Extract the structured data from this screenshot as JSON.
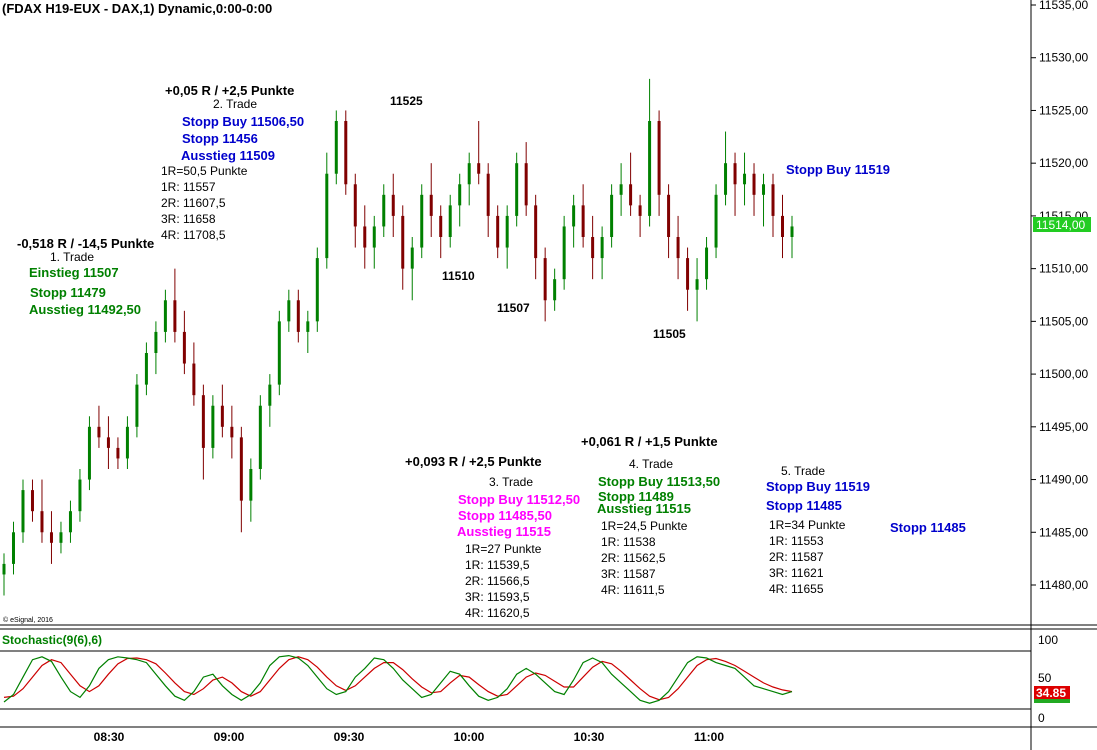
{
  "header": {
    "title": "(FDAX H19-EUX - DAX,1) Dynamic,0:00-0:00"
  },
  "copyright": "© eSignal, 2016",
  "price_axis": {
    "labels": [
      "11535,00",
      "11530,00",
      "11525,00",
      "11520,00",
      "11515,00",
      "11510,00",
      "11505,00",
      "11500,00",
      "11495,00",
      "11490,00",
      "11485,00",
      "11480,00"
    ],
    "current_price": "11514,00",
    "current_color": "#22cc22"
  },
  "time_axis": {
    "labels": [
      "08:30",
      "09:00",
      "09:30",
      "10:00",
      "10:30",
      "11:00"
    ]
  },
  "stochastic": {
    "label": "Stochastic(9(6),6)",
    "axis_labels": [
      "100",
      "50",
      "0"
    ],
    "current_value": "34.85",
    "k_color": "#008000",
    "d_color": "#cc0000"
  },
  "colors": {
    "up": "#008000",
    "down": "#800000",
    "blue": "#0000cc",
    "green": "#008000",
    "magenta": "#ff00ff"
  },
  "levels": {
    "high": "11525",
    "low1": "11510",
    "low2": "11507",
    "low3": "11505"
  },
  "trades": [
    {
      "result": "-0,518 R / -14,5 Punkte",
      "name": "1. Trade",
      "orders": [
        "Einstieg 11507",
        "Stopp 11479",
        "Ausstieg 11492,50"
      ],
      "details": []
    },
    {
      "result": "+0,05 R / +2,5 Punkte",
      "name": "2. Trade",
      "orders": [
        "Stopp Buy 11506,50",
        "Stopp 11456",
        "Ausstieg 11509"
      ],
      "details": [
        "1R=50,5 Punkte",
        "1R: 11557",
        "2R: 11607,5",
        "3R: 11658",
        "4R: 11708,5"
      ]
    },
    {
      "result": "+0,093 R / +2,5 Punkte",
      "name": "3. Trade",
      "orders": [
        "Stopp Buy 11512,50",
        "Stopp 11485,50",
        "Ausstieg 11515"
      ],
      "details": [
        "1R=27 Punkte",
        "1R: 11539,5",
        "2R: 11566,5",
        "3R: 11593,5",
        "4R: 11620,5"
      ]
    },
    {
      "result": "+0,061 R / +1,5 Punkte",
      "name": "4. Trade",
      "orders": [
        "Stopp Buy 11513,50",
        "Stopp 11489",
        "Ausstieg 11515"
      ],
      "details": [
        "1R=24,5 Punkte",
        "1R: 11538",
        "2R: 11562,5",
        "3R: 11587",
        "4R: 11611,5"
      ]
    },
    {
      "result": "",
      "name": "5. Trade",
      "orders": [
        "Stopp Buy 11519",
        "Stopp 11485"
      ],
      "details": [
        "1R=34 Punkte",
        "1R: 11553",
        "2R: 11587",
        "3R: 11621",
        "4R: 11655"
      ]
    }
  ],
  "side_orders": {
    "stop_buy": "Stopp Buy 11519",
    "stop": "Stopp 11485"
  },
  "price_series": [
    [
      11481,
      11483,
      11479,
      11482
    ],
    [
      11482,
      11486,
      11481,
      11485
    ],
    [
      11485,
      11490,
      11484,
      11489
    ],
    [
      11489,
      11490,
      11486,
      11487
    ],
    [
      11487,
      11490,
      11484,
      11485
    ],
    [
      11485,
      11487,
      11482,
      11484
    ],
    [
      11484,
      11486,
      11483,
      11485
    ],
    [
      11485,
      11488,
      11484,
      11487
    ],
    [
      11487,
      11491,
      11486,
      11490
    ],
    [
      11490,
      11496,
      11489,
      11495
    ],
    [
      11495,
      11497,
      11493,
      11494
    ],
    [
      11494,
      11496,
      11491,
      11493
    ],
    [
      11493,
      11494,
      11491,
      11492
    ],
    [
      11492,
      11496,
      11491,
      11495
    ],
    [
      11495,
      11500,
      11494,
      11499
    ],
    [
      11499,
      11503,
      11498,
      11502
    ],
    [
      11502,
      11505,
      11500,
      11504
    ],
    [
      11504,
      11508,
      11503,
      11507
    ],
    [
      11507,
      11510,
      11503,
      11504
    ],
    [
      11504,
      11506,
      11500,
      11501
    ],
    [
      11501,
      11503,
      11497,
      11498
    ],
    [
      11498,
      11499,
      11490,
      11493
    ],
    [
      11493,
      11498,
      11492,
      11497
    ],
    [
      11497,
      11499,
      11494,
      11495
    ],
    [
      11495,
      11497,
      11492,
      11494
    ],
    [
      11494,
      11495,
      11485,
      11488
    ],
    [
      11488,
      11492,
      11486,
      11491
    ],
    [
      11491,
      11498,
      11490,
      11497
    ],
    [
      11497,
      11500,
      11495,
      11499
    ],
    [
      11499,
      11506,
      11498,
      11505
    ],
    [
      11505,
      11508,
      11504,
      11507
    ],
    [
      11507,
      11508,
      11503,
      11504
    ],
    [
      11504,
      11506,
      11502,
      11505
    ],
    [
      11505,
      11512,
      11504,
      11511
    ],
    [
      11511,
      11521,
      11510,
      11519
    ],
    [
      11519,
      11525,
      11518,
      11524
    ],
    [
      11524,
      11525,
      11517,
      11518
    ],
    [
      11518,
      11519,
      11512,
      11514
    ],
    [
      11514,
      11516,
      11510,
      11512
    ],
    [
      11512,
      11515,
      11510,
      11514
    ],
    [
      11514,
      11518,
      11513,
      11517
    ],
    [
      11517,
      11519,
      11513,
      11515
    ],
    [
      11515,
      11516,
      11508,
      11510
    ],
    [
      11510,
      11513,
      11507,
      11512
    ],
    [
      11512,
      11518,
      11511,
      11517
    ],
    [
      11517,
      11520,
      11513,
      11515
    ],
    [
      11515,
      11516,
      11511,
      11513
    ],
    [
      11513,
      11517,
      11512,
      11516
    ],
    [
      11516,
      11519,
      11514,
      11518
    ],
    [
      11518,
      11521,
      11516,
      11520
    ],
    [
      11520,
      11524,
      11518,
      11519
    ],
    [
      11519,
      11520,
      11513,
      11515
    ],
    [
      11515,
      11516,
      11511,
      11512
    ],
    [
      11512,
      11516,
      11510,
      11515
    ],
    [
      11515,
      11521,
      11514,
      11520
    ],
    [
      11520,
      11522,
      11515,
      11516
    ],
    [
      11516,
      11517,
      11509,
      11511
    ],
    [
      11511,
      11512,
      11505,
      11507
    ],
    [
      11507,
      11510,
      11506,
      11509
    ],
    [
      11509,
      11515,
      11508,
      11514
    ],
    [
      11514,
      11517,
      11512,
      11516
    ],
    [
      11516,
      11518,
      11512,
      11513
    ],
    [
      11513,
      11515,
      11509,
      11511
    ],
    [
      11511,
      11514,
      11509,
      11513
    ],
    [
      11513,
      11518,
      11512,
      11517
    ],
    [
      11517,
      11520,
      11515,
      11518
    ],
    [
      11518,
      11521,
      11515,
      11516
    ],
    [
      11516,
      11517,
      11513,
      11515
    ],
    [
      11515,
      11528,
      11514,
      11524
    ],
    [
      11524,
      11525,
      11515,
      11517
    ],
    [
      11517,
      11518,
      11511,
      11513
    ],
    [
      11513,
      11515,
      11509,
      11511
    ],
    [
      11511,
      11512,
      11506,
      11508
    ],
    [
      11508,
      11511,
      11505,
      11509
    ],
    [
      11509,
      11513,
      11508,
      11512
    ],
    [
      11512,
      11518,
      11511,
      11517
    ],
    [
      11517,
      11523,
      11516,
      11520
    ],
    [
      11520,
      11521,
      11515,
      11518
    ],
    [
      11518,
      11521,
      11516,
      11519
    ],
    [
      11519,
      11520,
      11515,
      11517
    ],
    [
      11517,
      11519,
      11514,
      11518
    ],
    [
      11518,
      11519,
      11513,
      11515
    ],
    [
      11515,
      11517,
      11511,
      11513
    ],
    [
      11513,
      11515,
      11511,
      11514
    ]
  ],
  "stochastic_series": {
    "k": [
      12,
      25,
      55,
      85,
      90,
      82,
      55,
      30,
      20,
      40,
      70,
      85,
      90,
      88,
      85,
      80,
      60,
      40,
      22,
      15,
      30,
      55,
      60,
      40,
      25,
      15,
      25,
      45,
      75,
      90,
      92,
      88,
      75,
      55,
      35,
      25,
      30,
      55,
      70,
      88,
      85,
      70,
      50,
      35,
      20,
      25,
      45,
      65,
      60,
      40,
      22,
      15,
      20,
      35,
      60,
      70,
      60,
      45,
      30,
      25,
      50,
      80,
      88,
      80,
      60,
      45,
      30,
      15,
      10,
      15,
      30,
      55,
      80,
      90,
      88,
      80,
      75,
      70,
      55,
      40,
      35,
      30,
      25,
      30
    ],
    "d": [
      20,
      22,
      35,
      55,
      75,
      85,
      80,
      60,
      40,
      30,
      40,
      60,
      78,
      87,
      88,
      85,
      78,
      62,
      45,
      30,
      25,
      35,
      50,
      55,
      45,
      30,
      22,
      30,
      50,
      70,
      85,
      90,
      85,
      72,
      55,
      40,
      32,
      40,
      55,
      70,
      80,
      80,
      68,
      52,
      38,
      28,
      30,
      45,
      58,
      55,
      42,
      30,
      22,
      25,
      40,
      55,
      62,
      58,
      48,
      38,
      38,
      55,
      72,
      82,
      78,
      65,
      50,
      35,
      22,
      16,
      20,
      35,
      55,
      75,
      85,
      87,
      82,
      75,
      65,
      55,
      45,
      38,
      33,
      30
    ]
  }
}
